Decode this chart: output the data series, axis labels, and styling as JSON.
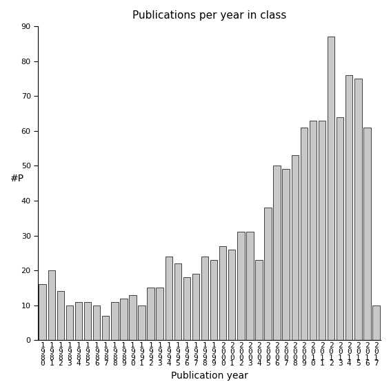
{
  "title": "Publications per year in class",
  "xlabel": "Publication year",
  "ylabel": "#P",
  "years": [
    "1980",
    "1981",
    "1982",
    "1983",
    "1984",
    "1985",
    "1986",
    "1987",
    "1988",
    "1989",
    "1990",
    "1991",
    "1992",
    "1993",
    "1994",
    "1995",
    "1996",
    "1997",
    "1998",
    "1999",
    "2000",
    "2001",
    "2002",
    "2003",
    "2004",
    "2005",
    "2006",
    "2007",
    "2008",
    "2009",
    "2010",
    "2011",
    "2012",
    "2013",
    "2014",
    "2015",
    "2016",
    "2017"
  ],
  "values": [
    16,
    20,
    14,
    10,
    11,
    11,
    10,
    7,
    11,
    12,
    13,
    10,
    15,
    15,
    24,
    22,
    18,
    19,
    24,
    23,
    27,
    26,
    31,
    31,
    23,
    38,
    50,
    49,
    53,
    61,
    63,
    63,
    87,
    64,
    76,
    75,
    61,
    10
  ],
  "bar_color": "#c8c8c8",
  "bar_edge_color": "#000000",
  "ylim": [
    0,
    90
  ],
  "yticks": [
    0,
    10,
    20,
    30,
    40,
    50,
    60,
    70,
    80,
    90
  ],
  "background_color": "#ffffff",
  "title_fontsize": 11,
  "axis_fontsize": 10,
  "tick_fontsize": 8
}
